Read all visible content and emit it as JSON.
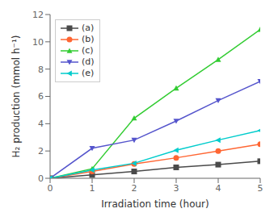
{
  "chart_data": {
    "type": "line",
    "x": [
      0,
      1,
      2,
      3,
      4,
      5
    ],
    "series": [
      {
        "name": "(a)",
        "color": "#4a4a4a",
        "marker": "square",
        "values": [
          0,
          0.25,
          0.5,
          0.8,
          1.0,
          1.25
        ]
      },
      {
        "name": "(b)",
        "color": "#ff6633",
        "marker": "circle",
        "values": [
          0,
          0.5,
          1.05,
          1.5,
          2.0,
          2.5
        ]
      },
      {
        "name": "(c)",
        "color": "#33cc33",
        "marker": "triangle-up",
        "values": [
          0,
          0.7,
          4.4,
          6.6,
          8.7,
          10.9
        ]
      },
      {
        "name": "(d)",
        "color": "#5555cc",
        "marker": "triangle-down",
        "values": [
          0,
          2.2,
          2.8,
          4.2,
          5.7,
          7.1
        ]
      },
      {
        "name": "(e)",
        "color": "#00cccc",
        "marker": "triangle-left",
        "values": [
          0,
          0.6,
          1.1,
          2.05,
          2.8,
          3.5
        ]
      }
    ],
    "xlabel": "Irradiation time (hour)",
    "ylabel": "H₂ production (mmol h⁻¹)",
    "xlim": [
      0,
      5
    ],
    "ylim": [
      0,
      12
    ],
    "xticks": [
      0,
      1,
      2,
      3,
      4,
      5
    ],
    "yticks": [
      0,
      2,
      4,
      6,
      8,
      10,
      12
    ],
    "grid": false,
    "legend": "upper left"
  }
}
